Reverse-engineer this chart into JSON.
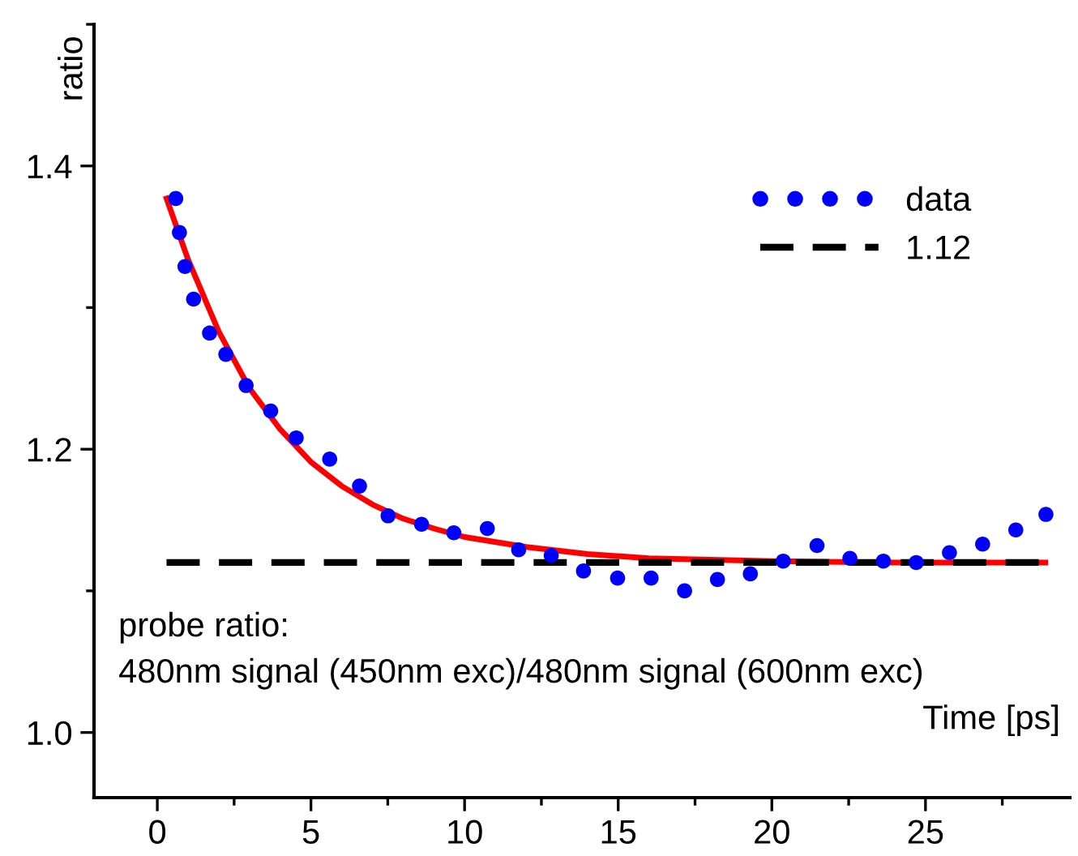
{
  "chart_data": {
    "type": "scatter",
    "xlabel": "Time [ps]",
    "ylabel": "ratio",
    "xlim": [
      -2.06,
      29.7
    ],
    "ylim": [
      0.954,
      1.5
    ],
    "xticks": [
      0,
      5,
      10,
      15,
      20,
      25
    ],
    "yticks": [
      {
        "value": 1.0,
        "label": "1.0"
      },
      {
        "value": 1.2,
        "label": "1.2"
      },
      {
        "value": 1.4,
        "label": "1.4"
      }
    ],
    "grid": false,
    "legend": "top right",
    "annotations": [
      "probe ratio:\n480nm signal (450nm exc)/480nm signal (600nm exc)"
    ],
    "series": [
      {
        "name": "data",
        "marker": "circle",
        "color": "#0000ff",
        "x": [
          0.6,
          0.72,
          0.9,
          1.18,
          1.7,
          2.23,
          2.89,
          3.69,
          4.52,
          5.61,
          6.58,
          7.51,
          8.6,
          9.65,
          10.74,
          11.76,
          12.82,
          13.87,
          14.98,
          16.07,
          17.16,
          18.23,
          19.3,
          20.37,
          21.47,
          22.54,
          23.63,
          24.7,
          25.78,
          26.86,
          27.94,
          28.92
        ],
        "values": [
          1.377,
          1.353,
          1.329,
          1.306,
          1.282,
          1.267,
          1.245,
          1.227,
          1.208,
          1.193,
          1.174,
          1.153,
          1.147,
          1.141,
          1.144,
          1.129,
          1.125,
          1.114,
          1.109,
          1.109,
          1.1,
          1.108,
          1.112,
          1.121,
          1.132,
          1.123,
          1.121,
          1.12,
          1.127,
          1.133,
          1.143,
          1.154
        ]
      },
      {
        "name": "1.12",
        "type": "line",
        "line_style": "dashed",
        "marker": "none",
        "color": "#000000",
        "x": [
          0.3,
          28.9
        ],
        "values": [
          1.12,
          1.12
        ]
      },
      {
        "type": "line",
        "line_style": "solid",
        "marker": "none",
        "color": "#ff0000",
        "x": [
          0.3,
          1,
          2,
          3,
          4,
          5,
          6,
          7,
          8,
          9,
          10,
          12,
          14,
          16,
          18,
          20,
          24,
          28.9
        ],
        "values": [
          1.377,
          1.334,
          1.283,
          1.243,
          1.214,
          1.191,
          1.174,
          1.161,
          1.151,
          1.144,
          1.138,
          1.131,
          1.126,
          1.123,
          1.122,
          1.121,
          1.12,
          1.12
        ]
      }
    ]
  }
}
